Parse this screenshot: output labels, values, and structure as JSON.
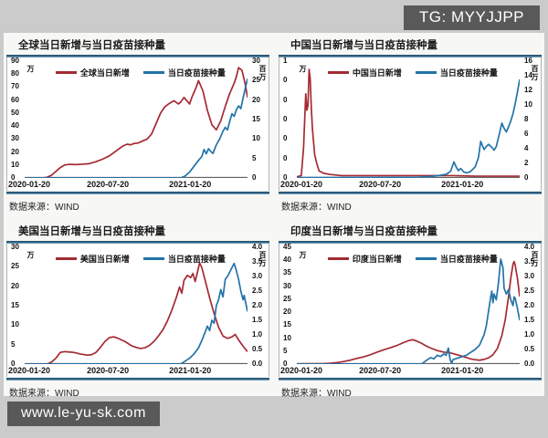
{
  "overlay": {
    "tg_badge": "TG: MYYJJPP",
    "site_badge": "www.le-yu-sk.com"
  },
  "colors": {
    "new_cases_red": "#a52a33",
    "vaccination_blue": "#2273a8",
    "badge_gray": "#595959",
    "rule_blue": "#35678a",
    "page_background": "#cbcbcb"
  },
  "chart_data": [
    {
      "type": "line",
      "title": "全球当日新增与当日疫苗接种量",
      "source": "数据来源：WIND",
      "legend_position": "top",
      "grid": false,
      "x_axis": {
        "tick_labels": [
          "2020-01-20",
          "2020-07-20",
          "2021-01-20"
        ]
      },
      "y_left": {
        "unit": "万",
        "max": 90,
        "ticks": [
          "90",
          "80",
          "70",
          "60",
          "50",
          "40",
          "30",
          "20",
          "10",
          "0"
        ]
      },
      "y_right": {
        "unit": "百万",
        "max": 30,
        "ticks": [
          "30",
          "25",
          "20",
          "15",
          "10",
          "5",
          "0"
        ]
      },
      "series": [
        {
          "name": "全球当日新增",
          "axis": "left",
          "color": "#a52a33",
          "x": [
            0,
            0.08,
            0.1,
            0.12,
            0.14,
            0.16,
            0.18,
            0.2,
            0.23,
            0.26,
            0.29,
            0.32,
            0.35,
            0.38,
            0.4,
            0.42,
            0.44,
            0.46,
            0.475,
            0.49,
            0.51,
            0.53,
            0.55,
            0.57,
            0.59,
            0.61,
            0.63,
            0.65,
            0.67,
            0.69,
            0.7,
            0.715,
            0.725,
            0.74,
            0.75,
            0.76,
            0.77,
            0.78,
            0.8,
            0.82,
            0.84,
            0.86,
            0.88,
            0.9,
            0.92,
            0.94,
            0.95,
            0.96,
            0.975,
            0.99,
            1.0
          ],
          "values": [
            0,
            0,
            0.5,
            2,
            5,
            8,
            10,
            10.5,
            10.3,
            10.6,
            11,
            12.5,
            14.5,
            17,
            19.5,
            22,
            24.5,
            26,
            25.5,
            26.5,
            27,
            28.5,
            30,
            34,
            42,
            50,
            55,
            57.5,
            59.5,
            57,
            58.5,
            62,
            60,
            57,
            62,
            66,
            70,
            75,
            67,
            52,
            41,
            37,
            44,
            55,
            65,
            73,
            78,
            85,
            83,
            72,
            62
          ]
        },
        {
          "name": "当日疫苗接种量",
          "axis": "right",
          "color": "#2273a8",
          "x": [
            0,
            0.7,
            0.72,
            0.74,
            0.76,
            0.78,
            0.795,
            0.805,
            0.815,
            0.825,
            0.835,
            0.845,
            0.86,
            0.875,
            0.89,
            0.9,
            0.91,
            0.92,
            0.93,
            0.94,
            0.95,
            0.96,
            0.97,
            0.98,
            0.99,
            1.0
          ],
          "values": [
            0,
            0,
            0.5,
            1.5,
            3,
            4.5,
            5.5,
            7.3,
            6.2,
            7.5,
            6.8,
            6.3,
            8.5,
            10,
            12,
            13,
            12.3,
            14.5,
            16.5,
            15.8,
            17.5,
            18.5,
            17.8,
            20.5,
            23,
            25.5
          ]
        }
      ]
    },
    {
      "type": "line",
      "title": "中国当日新增与当日疫苗接种量",
      "source": "数据来源：WIND",
      "legend_position": "top",
      "grid": false,
      "x_axis": {
        "tick_labels": [
          "2020-01-20",
          "2020-07-20",
          "2021-01-20"
        ]
      },
      "y_left": {
        "unit": "万",
        "max": 1,
        "ticks": [
          "1",
          "0",
          "0",
          "0",
          "0",
          "0",
          "0"
        ]
      },
      "y_right": {
        "unit": "百万",
        "max": 16,
        "ticks": [
          "16",
          "14",
          "12",
          "10",
          "8",
          "6",
          "4",
          "2",
          "0"
        ]
      },
      "series": [
        {
          "name": "中国当日新增",
          "axis": "left",
          "color": "#a52a33",
          "x": [
            0,
            0.02,
            0.03,
            0.04,
            0.045,
            0.05,
            0.055,
            0.06,
            0.065,
            0.07,
            0.08,
            0.09,
            0.1,
            0.12,
            0.15,
            0.2,
            0.3,
            0.4,
            0.5,
            0.6,
            0.7,
            0.8,
            0.9,
            1.0
          ],
          "values": [
            0.01,
            0.02,
            0.25,
            0.72,
            0.58,
            0.62,
            0.93,
            0.85,
            0.6,
            0.42,
            0.2,
            0.12,
            0.06,
            0.04,
            0.03,
            0.02,
            0.02,
            0.02,
            0.02,
            0.02,
            0.02,
            0.015,
            0.015,
            0.015
          ]
        },
        {
          "name": "当日疫苗接种量",
          "axis": "right",
          "color": "#2273a8",
          "x": [
            0,
            0.55,
            0.6,
            0.63,
            0.65,
            0.67,
            0.69,
            0.705,
            0.715,
            0.725,
            0.735,
            0.75,
            0.765,
            0.78,
            0.8,
            0.815,
            0.825,
            0.84,
            0.85,
            0.86,
            0.875,
            0.885,
            0.895,
            0.91,
            0.92,
            0.93,
            0.94,
            0.95,
            0.96,
            0.97,
            0.98,
            0.99,
            1.0
          ],
          "values": [
            0.05,
            0.1,
            0.2,
            0.3,
            0.4,
            0.5,
            0.9,
            2.2,
            1.5,
            1.0,
            1.3,
            0.8,
            0.7,
            0.9,
            1.5,
            2.8,
            5.0,
            3.9,
            4.3,
            4.6,
            4.2,
            3.8,
            4.3,
            6.2,
            7.5,
            6.8,
            6.3,
            7.0,
            7.8,
            8.8,
            10.2,
            11.8,
            13.5
          ]
        }
      ]
    },
    {
      "type": "line",
      "title": "美国当日新增与当日疫苗接种量",
      "source": "数据来源：WIND",
      "legend_position": "top",
      "grid": false,
      "x_axis": {
        "tick_labels": [
          "2020-01-20",
          "2020-07-20",
          "2021-01-20"
        ]
      },
      "y_left": {
        "unit": "万",
        "max": 30,
        "ticks": [
          "30",
          "25",
          "20",
          "15",
          "10",
          "5",
          "0"
        ]
      },
      "y_right": {
        "unit": "百万",
        "max": 4,
        "ticks": [
          "4.0",
          "3.5",
          "3.0",
          "2.5",
          "2.0",
          "1.5",
          "1.0",
          "0.5",
          "0.0"
        ]
      },
      "series": [
        {
          "name": "美国当日新增",
          "axis": "left",
          "color": "#a52a33",
          "x": [
            0,
            0.1,
            0.12,
            0.14,
            0.16,
            0.18,
            0.2,
            0.22,
            0.25,
            0.28,
            0.3,
            0.32,
            0.34,
            0.36,
            0.38,
            0.4,
            0.42,
            0.45,
            0.48,
            0.5,
            0.52,
            0.54,
            0.56,
            0.58,
            0.6,
            0.62,
            0.64,
            0.66,
            0.68,
            0.695,
            0.705,
            0.715,
            0.73,
            0.745,
            0.755,
            0.765,
            0.775,
            0.785,
            0.795,
            0.81,
            0.83,
            0.85,
            0.87,
            0.89,
            0.91,
            0.93,
            0.945,
            0.96,
            0.98,
            1.0
          ],
          "values": [
            0,
            0,
            0.5,
            1.5,
            3,
            3.2,
            3.1,
            3.0,
            2.6,
            2.3,
            2.4,
            3.0,
            4.3,
            5.8,
            6.8,
            7.0,
            6.6,
            5.8,
            4.7,
            4.3,
            4.0,
            4.2,
            4.8,
            5.8,
            7.2,
            8.8,
            11,
            13.8,
            17,
            19.8,
            18.2,
            21.5,
            22.8,
            22.2,
            23.3,
            21.2,
            23.5,
            26,
            24.8,
            21.5,
            17,
            13,
            9.5,
            7.2,
            6.6,
            7.0,
            7.6,
            6.2,
            4.6,
            3.2
          ]
        },
        {
          "name": "当日疫苗接种量",
          "axis": "right",
          "color": "#2273a8",
          "x": [
            0,
            0.7,
            0.72,
            0.74,
            0.76,
            0.78,
            0.8,
            0.81,
            0.82,
            0.83,
            0.84,
            0.85,
            0.86,
            0.87,
            0.88,
            0.89,
            0.9,
            0.91,
            0.92,
            0.93,
            0.94,
            0.95,
            0.96,
            0.97,
            0.98,
            0.985,
            1.0
          ],
          "values": [
            0,
            0,
            0.1,
            0.2,
            0.35,
            0.55,
            0.9,
            1.1,
            1.3,
            1.15,
            1.5,
            1.4,
            2.0,
            2.2,
            2.55,
            2.3,
            2.9,
            3.0,
            3.15,
            3.3,
            3.45,
            3.2,
            2.9,
            2.5,
            2.2,
            2.35,
            1.8
          ]
        }
      ]
    },
    {
      "type": "line",
      "title": "印度当日新增与当日疫苗接种量",
      "source": "数据来源：WIND",
      "legend_position": "top",
      "grid": false,
      "x_axis": {
        "tick_labels": [
          "2020-01-20",
          "2020-07-20",
          "2021-01-20"
        ]
      },
      "y_left": {
        "unit": "万",
        "max": 45,
        "ticks": [
          "45",
          "40",
          "35",
          "30",
          "25",
          "20",
          "15",
          "10",
          "5",
          "0"
        ]
      },
      "y_right": {
        "unit": "百万",
        "max": 4,
        "ticks": [
          "4.0",
          "3.5",
          "3.0",
          "2.5",
          "2.0",
          "1.5",
          "1.0",
          "0.5",
          "0.0"
        ]
      },
      "series": [
        {
          "name": "印度当日新增",
          "axis": "left",
          "color": "#a52a33",
          "x": [
            0,
            0.12,
            0.15,
            0.18,
            0.21,
            0.24,
            0.27,
            0.3,
            0.33,
            0.36,
            0.39,
            0.42,
            0.45,
            0.48,
            0.5,
            0.52,
            0.54,
            0.56,
            0.58,
            0.6,
            0.63,
            0.66,
            0.69,
            0.72,
            0.75,
            0.78,
            0.8,
            0.82,
            0.84,
            0.86,
            0.88,
            0.9,
            0.92,
            0.935,
            0.95,
            0.96,
            0.97,
            0.975,
            0.98,
            0.99,
            1.0
          ],
          "values": [
            0.1,
            0.2,
            0.3,
            0.6,
            1.0,
            1.5,
            2.2,
            2.8,
            3.6,
            4.6,
            5.5,
            6.3,
            7.2,
            8.3,
            9.0,
            9.4,
            8.8,
            8.0,
            7.0,
            6.2,
            5.2,
            4.6,
            4.3,
            3.6,
            2.8,
            2.0,
            1.7,
            1.5,
            1.8,
            2.4,
            3.6,
            6.0,
            11,
            17,
            26,
            33,
            38.5,
            39.5,
            38,
            33,
            26
          ]
        },
        {
          "name": "当日疫苗接种量",
          "axis": "right",
          "color": "#2273a8",
          "x": [
            0,
            0.56,
            0.58,
            0.6,
            0.615,
            0.63,
            0.645,
            0.66,
            0.67,
            0.68,
            0.688,
            0.695,
            0.7,
            0.72,
            0.74,
            0.76,
            0.78,
            0.8,
            0.82,
            0.84,
            0.85,
            0.86,
            0.87,
            0.875,
            0.88,
            0.885,
            0.895,
            0.905,
            0.915,
            0.925,
            0.93,
            0.94,
            0.95,
            0.96,
            0.97,
            0.975,
            0.98,
            0.99,
            1.0
          ],
          "values": [
            0,
            0,
            0.12,
            0.22,
            0.18,
            0.3,
            0.26,
            0.35,
            0.3,
            0.55,
            0.15,
            0.02,
            0.15,
            0.2,
            0.25,
            0.3,
            0.4,
            0.5,
            0.65,
            1.0,
            1.3,
            1.8,
            2.3,
            2.5,
            2.1,
            2.4,
            2.2,
            2.8,
            3.6,
            3.3,
            2.6,
            2.4,
            2.55,
            2.2,
            2.0,
            2.3,
            2.25,
            1.9,
            1.5
          ]
        }
      ]
    }
  ]
}
